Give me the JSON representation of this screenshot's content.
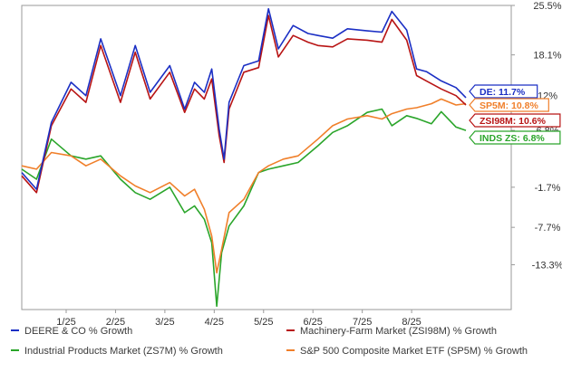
{
  "chart_data": {
    "type": "line",
    "x_ticks": [
      "1/25",
      "2/25",
      "3/25",
      "4/25",
      "5/25",
      "6/25",
      "7/25",
      "8/25"
    ],
    "y_ticks": [
      "25.5%",
      "18.1%",
      "12%",
      "6.8%",
      "-1.7%",
      "-7.7%",
      "-13.3%"
    ],
    "ylim": [
      -20,
      25.5
    ],
    "series": [
      {
        "name": "DEERE & CO % Growth",
        "color": "#1b2fc4",
        "end_label": "DE: 11.7%",
        "x": [
          0,
          0.3,
          0.6,
          1.0,
          1.3,
          1.6,
          2.0,
          2.3,
          2.6,
          3.0,
          3.3,
          3.5,
          3.7,
          3.85,
          4.0,
          4.1,
          4.2,
          4.5,
          4.8,
          5.0,
          5.2,
          5.5,
          5.8,
          6.0,
          6.3,
          6.6,
          7.0,
          7.3,
          7.5,
          7.8,
          8.0,
          8.2,
          8.5,
          8.8,
          9.0
        ],
        "y": [
          0.5,
          -2,
          8,
          14,
          12,
          20.5,
          12,
          19.5,
          12.5,
          16.5,
          10,
          14,
          12.5,
          16,
          7,
          2.5,
          11,
          16.5,
          17.2,
          25,
          19,
          22.5,
          21.3,
          21,
          20.6,
          22,
          21.7,
          21.5,
          24.6,
          21.8,
          16,
          15.6,
          14.2,
          13.2,
          11.7
        ]
      },
      {
        "name": "Machinery-Farm Market (ZSI98M) % Growth",
        "color": "#b81414",
        "end_label": "ZSI98M: 10.6%",
        "x": [
          0,
          0.3,
          0.6,
          1.0,
          1.3,
          1.6,
          2.0,
          2.3,
          2.6,
          3.0,
          3.3,
          3.5,
          3.7,
          3.85,
          4.0,
          4.1,
          4.2,
          4.5,
          4.8,
          5.0,
          5.2,
          5.5,
          5.8,
          6.0,
          6.3,
          6.6,
          7.0,
          7.3,
          7.5,
          7.8,
          8.0,
          8.2,
          8.5,
          8.8,
          9.0
        ],
        "y": [
          0,
          -2.5,
          7.5,
          13,
          11,
          19.5,
          11,
          18.5,
          11.5,
          15.5,
          9.5,
          13,
          11.5,
          14.5,
          6,
          2,
          10,
          15.5,
          16.2,
          24,
          17.8,
          21,
          20,
          19.5,
          19.3,
          20.5,
          20.3,
          20,
          23.4,
          20.3,
          15,
          14.2,
          13,
          12,
          10.6
        ]
      },
      {
        "name": "Industrial Products Market (ZS7M) % Growth",
        "color": "#2aa52a",
        "end_label": "INDS ZS: 6.8%",
        "x": [
          0,
          0.3,
          0.6,
          1.0,
          1.3,
          1.6,
          2.0,
          2.3,
          2.6,
          3.0,
          3.3,
          3.5,
          3.7,
          3.85,
          3.95,
          4.05,
          4.2,
          4.5,
          4.8,
          5.0,
          5.3,
          5.6,
          6.0,
          6.3,
          6.6,
          7.0,
          7.3,
          7.5,
          7.8,
          8.0,
          8.3,
          8.5,
          8.8,
          9.0
        ],
        "y": [
          1,
          -0.5,
          5.5,
          3,
          2.5,
          3,
          -0.5,
          -2.5,
          -3.5,
          -1.7,
          -5.5,
          -4.5,
          -6.5,
          -10,
          -19.5,
          -11.5,
          -7.5,
          -4.5,
          0.5,
          1,
          1.5,
          2,
          4.5,
          6.5,
          7.5,
          9.5,
          10,
          7.5,
          9,
          8.6,
          7.8,
          9.6,
          7.3,
          6.8
        ]
      },
      {
        "name": "S&P 500 Composite Market ETF (SP5M) % Growth",
        "color": "#f07f2a",
        "end_label": "SP5M: 10.8%",
        "x": [
          0,
          0.3,
          0.6,
          1.0,
          1.3,
          1.6,
          2.0,
          2.3,
          2.6,
          3.0,
          3.3,
          3.5,
          3.7,
          3.85,
          3.95,
          4.05,
          4.2,
          4.5,
          4.8,
          5.0,
          5.3,
          5.6,
          6.0,
          6.3,
          6.6,
          7.0,
          7.3,
          7.5,
          7.8,
          8.0,
          8.3,
          8.5,
          8.8,
          9.0
        ],
        "y": [
          1.5,
          1,
          3.5,
          3,
          1.5,
          2.5,
          0,
          -1.5,
          -2.5,
          -1,
          -3,
          -2,
          -5,
          -9,
          -14.5,
          -11,
          -5.5,
          -3.5,
          0.5,
          1.5,
          2.5,
          3,
          5.5,
          7.5,
          8.5,
          9,
          8.5,
          9.3,
          10,
          10.2,
          10.8,
          11.5,
          10.6,
          10.8
        ]
      }
    ],
    "end_label_order": [
      "DE: 11.7%",
      "SP5M: 10.8%",
      "ZSI98M: 10.6%",
      "INDS ZS: 6.8%"
    ],
    "grid": false,
    "legend_position": "bottom"
  }
}
